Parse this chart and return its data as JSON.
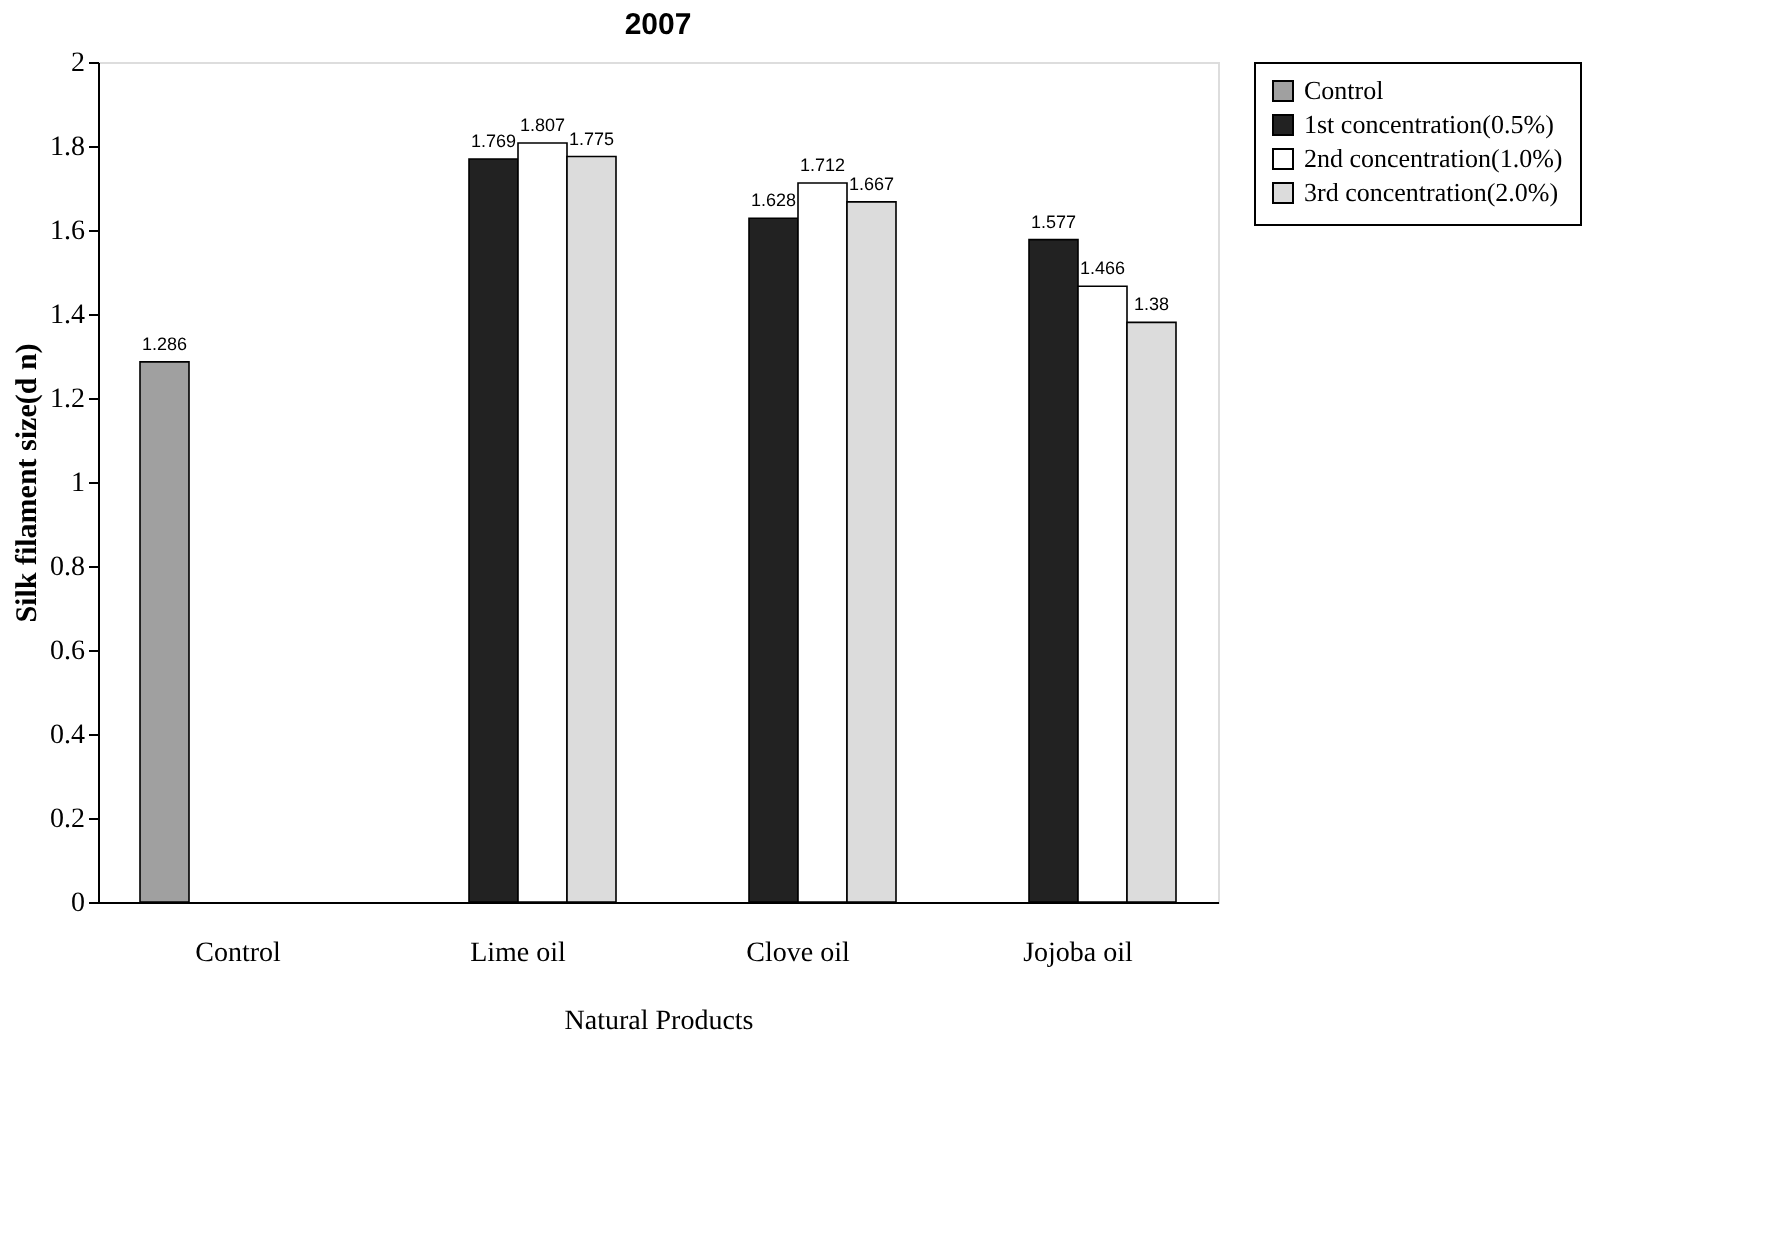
{
  "chart_data": {
    "type": "bar",
    "title": "2007",
    "xlabel": "Natural Products",
    "ylabel": "Silk filament size(d n)",
    "categories": [
      "Control",
      "Lime oil",
      "Clove oil",
      "Jojoba oil"
    ],
    "series": [
      {
        "name": "Control",
        "color": "#a0a0a0",
        "values": [
          1.286,
          null,
          null,
          null
        ]
      },
      {
        "name": "1st concentration(0.5%)",
        "color": "#222222",
        "values": [
          null,
          1.769,
          1.628,
          1.577
        ]
      },
      {
        "name": "2nd concentration(1.0%)",
        "color": "#ffffff",
        "values": [
          null,
          1.807,
          1.712,
          1.466
        ]
      },
      {
        "name": "3rd concentration(2.0%)",
        "color": "#dcdcdc",
        "values": [
          null,
          1.775,
          1.667,
          1.38
        ]
      }
    ],
    "ylim": [
      0,
      2
    ],
    "yticks": [
      0,
      0.2,
      0.4,
      0.6,
      0.8,
      1,
      1.2,
      1.4,
      1.6,
      1.8,
      2
    ],
    "grid": false,
    "legend": "right",
    "data_labels": true
  }
}
